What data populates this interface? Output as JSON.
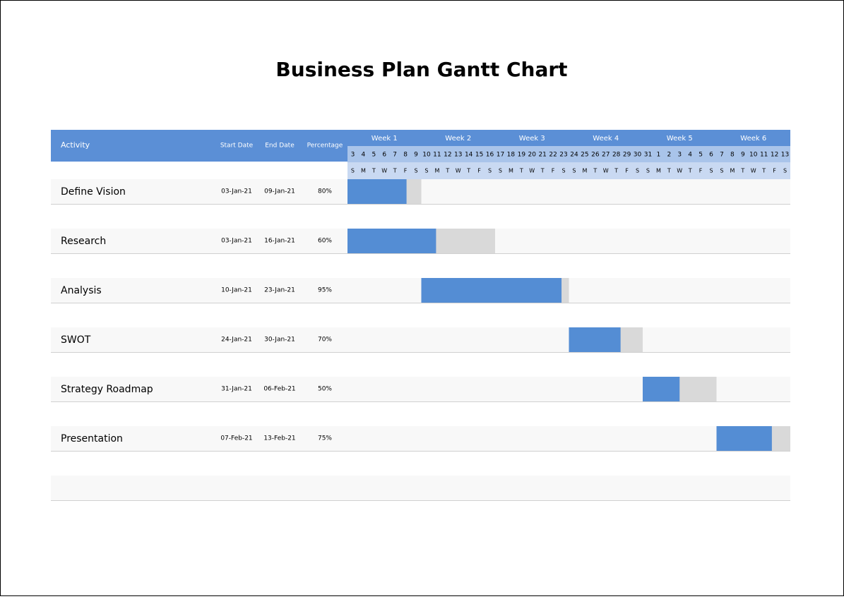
{
  "title": "Business Plan Gantt Chart",
  "columns": [
    "Activity",
    "Start Date",
    "End Date",
    "Percentage"
  ],
  "weeks": [
    "Week 1",
    "Week 2",
    "Week 3",
    "Week 4",
    "Week 5",
    "Week 6"
  ],
  "days": [
    "3",
    "4",
    "5",
    "6",
    "7",
    "8",
    "9",
    "10",
    "11",
    "12",
    "13",
    "14",
    "15",
    "16",
    "17",
    "18",
    "19",
    "20",
    "21",
    "22",
    "23",
    "24",
    "25",
    "26",
    "27",
    "28",
    "29",
    "30",
    "31",
    "1",
    "2",
    "3",
    "4",
    "5",
    "6",
    "7",
    "8",
    "9",
    "10",
    "11",
    "12",
    "13"
  ],
  "weekdays": [
    "S",
    "M",
    "T",
    "W",
    "T",
    "F",
    "S",
    "S",
    "M",
    "T",
    "W",
    "T",
    "F",
    "S",
    "S",
    "M",
    "T",
    "W",
    "T",
    "F",
    "S",
    "S",
    "M",
    "T",
    "W",
    "T",
    "F",
    "S",
    "S",
    "M",
    "T",
    "W",
    "T",
    "F",
    "S",
    "S",
    "M",
    "T",
    "W",
    "T",
    "F",
    "S"
  ],
  "tasks": [
    {
      "activity": "Define Vision",
      "start": "03-Jan-21",
      "end": "09-Jan-21",
      "percentage": "80%"
    },
    {
      "activity": "Research",
      "start": "03-Jan-21",
      "end": "16-Jan-21",
      "percentage": "60%"
    },
    {
      "activity": "Analysis",
      "start": "10-Jan-21",
      "end": "23-Jan-21",
      "percentage": "95%"
    },
    {
      "activity": "SWOT",
      "start": "24-Jan-21",
      "end": "30-Jan-21",
      "percentage": "70%"
    },
    {
      "activity": "Strategy Roadmap",
      "start": "31-Jan-21",
      "end": "06-Feb-21",
      "percentage": "50%"
    },
    {
      "activity": "Presentation",
      "start": "07-Feb-21",
      "end": "13-Feb-21",
      "percentage": "75%"
    }
  ]
}
